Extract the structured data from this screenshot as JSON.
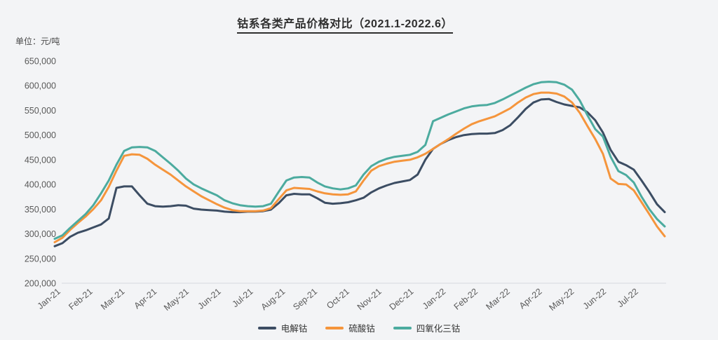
{
  "title": "钴系各类产品价格对比（2021.1-2022.6）",
  "unit_label": "单位：元/吨",
  "colors": {
    "background": "#f3f4f6",
    "axis_line": "#e0e2e6",
    "axis_text": "#595959"
  },
  "chart_data": {
    "type": "line",
    "title": "钴系各类产品价格对比（2021.1-2022.6）",
    "ylabel": "元/吨",
    "ylim": [
      200000,
      650000
    ],
    "y_tick_step": 50000,
    "grid": false,
    "legend_position": "bottom",
    "x_tick_labels": [
      "Jan-21",
      "Feb-21",
      "Mar-21",
      "Apr-21",
      "May-21",
      "Jun-21",
      "Jul-21",
      "Aug-21",
      "Sep-21",
      "Oct-21",
      "Nov-21",
      "Dec-21",
      "Jan-22",
      "Feb-22",
      "Mar-22",
      "Apr-22",
      "May-22",
      "Jun-22",
      "Jul-22"
    ],
    "series": [
      {
        "name": "电解钴",
        "color": "#3c4d63",
        "values": [
          275000,
          281000,
          294000,
          302000,
          307000,
          313000,
          319000,
          331000,
          393000,
          396000,
          396000,
          378000,
          361000,
          356000,
          355000,
          356000,
          358000,
          357000,
          351000,
          349000,
          348000,
          347000,
          345000,
          344000,
          344000,
          345000,
          345000,
          346000,
          349000,
          362000,
          378000,
          381000,
          380000,
          380000,
          372000,
          363000,
          361000,
          362000,
          364000,
          368000,
          373000,
          384000,
          392000,
          398000,
          403000,
          406000,
          409000,
          420000,
          450000,
          472000,
          482000,
          490000,
          496000,
          500000,
          502000,
          503000,
          503000,
          504000,
          510000,
          520000,
          536000,
          553000,
          566000,
          572000,
          573000,
          567000,
          562000,
          559000,
          556000,
          546000,
          530000,
          505000,
          470000,
          446000,
          439000,
          430000,
          408000,
          385000,
          360000,
          344000
        ]
      },
      {
        "name": "硫酸钴",
        "color": "#f5953c",
        "values": [
          283000,
          292000,
          308000,
          322000,
          335000,
          350000,
          368000,
          395000,
          428000,
          458000,
          461000,
          460000,
          452000,
          440000,
          430000,
          420000,
          408000,
          396000,
          386000,
          376000,
          368000,
          360000,
          353000,
          348000,
          346000,
          346000,
          346000,
          347000,
          352000,
          370000,
          388000,
          393000,
          392000,
          391000,
          386000,
          382000,
          380000,
          379000,
          380000,
          386000,
          408000,
          428000,
          437000,
          442000,
          446000,
          448000,
          450000,
          455000,
          462000,
          472000,
          482000,
          492000,
          503000,
          513000,
          522000,
          528000,
          533000,
          538000,
          546000,
          554000,
          566000,
          576000,
          583000,
          586000,
          586000,
          584000,
          578000,
          566000,
          545000,
          518000,
          492000,
          462000,
          412000,
          401000,
          400000,
          388000,
          364000,
          340000,
          315000,
          295000
        ]
      },
      {
        "name": "四氧化三钴",
        "color": "#4cab9f",
        "values": [
          290000,
          297000,
          312000,
          326000,
          340000,
          358000,
          382000,
          408000,
          440000,
          468000,
          475000,
          476000,
          475000,
          468000,
          455000,
          442000,
          428000,
          412000,
          400000,
          392000,
          385000,
          378000,
          368000,
          362000,
          358000,
          356000,
          355000,
          356000,
          361000,
          385000,
          408000,
          414000,
          415000,
          414000,
          404000,
          396000,
          392000,
          390000,
          392000,
          398000,
          420000,
          437000,
          446000,
          452000,
          456000,
          458000,
          460000,
          466000,
          480000,
          528000,
          535000,
          542000,
          548000,
          554000,
          558000,
          560000,
          561000,
          565000,
          572000,
          580000,
          588000,
          596000,
          603000,
          607000,
          608000,
          607000,
          602000,
          592000,
          570000,
          540000,
          512000,
          497000,
          456000,
          427000,
          419000,
          404000,
          375000,
          350000,
          330000,
          315000
        ]
      }
    ]
  }
}
